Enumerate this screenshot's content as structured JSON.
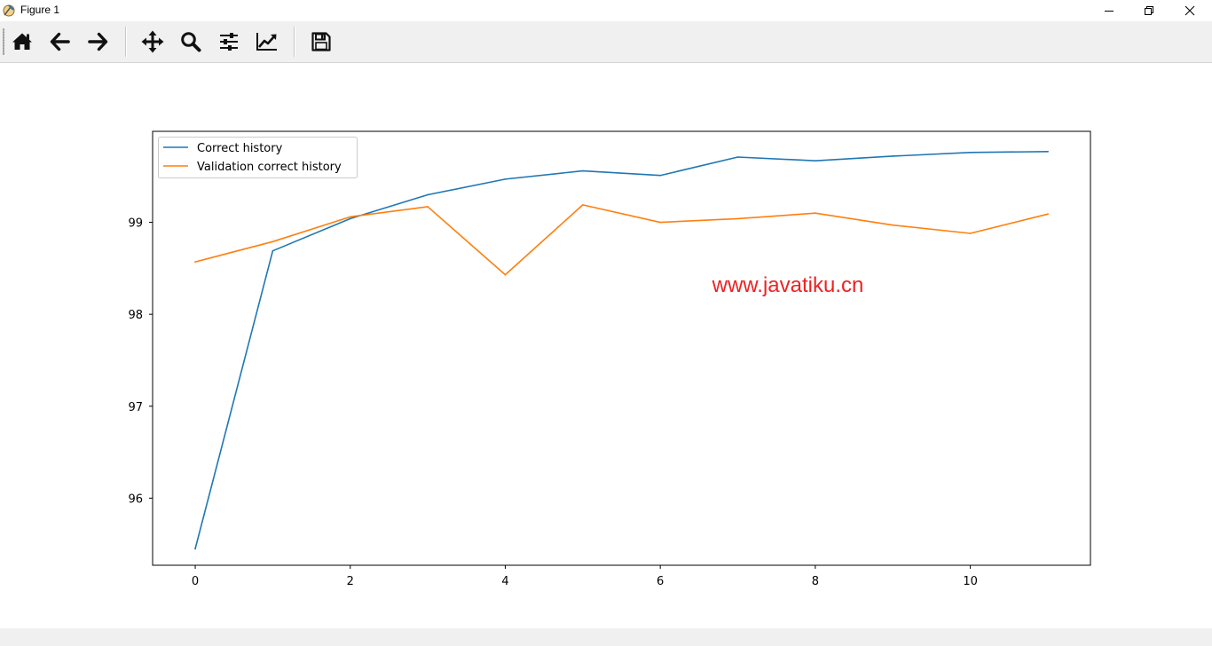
{
  "window": {
    "title": "Figure 1"
  },
  "toolbar": {
    "buttons": [
      {
        "name": "home",
        "icon": "home-icon"
      },
      {
        "name": "back",
        "icon": "arrow-left-icon"
      },
      {
        "name": "forward",
        "icon": "arrow-right-icon"
      },
      {
        "name": "pan",
        "icon": "move-icon"
      },
      {
        "name": "zoom",
        "icon": "magnifier-icon"
      },
      {
        "name": "configure-subplots",
        "icon": "sliders-icon"
      },
      {
        "name": "edit-axis",
        "icon": "line-chart-icon"
      },
      {
        "name": "save",
        "icon": "floppy-disk-icon"
      }
    ]
  },
  "watermark": {
    "text": "www.javatiku.cn",
    "color": "#ee2222"
  },
  "chart_data": {
    "type": "line",
    "title": "",
    "xlabel": "",
    "ylabel": "",
    "xlim": [
      -0.55,
      11.55
    ],
    "ylim": [
      95.27,
      99.99
    ],
    "xticks": [
      0,
      2,
      4,
      6,
      8,
      10
    ],
    "yticks": [
      96,
      97,
      98,
      99
    ],
    "grid": false,
    "legend_location": "upper left",
    "x": [
      0,
      1,
      2,
      3,
      4,
      5,
      6,
      7,
      8,
      9,
      10,
      11
    ],
    "series": [
      {
        "name": "Correct history",
        "color": "#1f77b4",
        "values": [
          95.45,
          98.69,
          99.04,
          99.3,
          99.47,
          99.56,
          99.51,
          99.71,
          99.67,
          99.72,
          99.76,
          99.77
        ]
      },
      {
        "name": "Validation correct history",
        "color": "#ff7f0e",
        "values": [
          98.57,
          98.79,
          99.06,
          99.17,
          98.43,
          99.19,
          99.0,
          99.04,
          99.1,
          98.97,
          98.88,
          99.09
        ]
      }
    ]
  }
}
